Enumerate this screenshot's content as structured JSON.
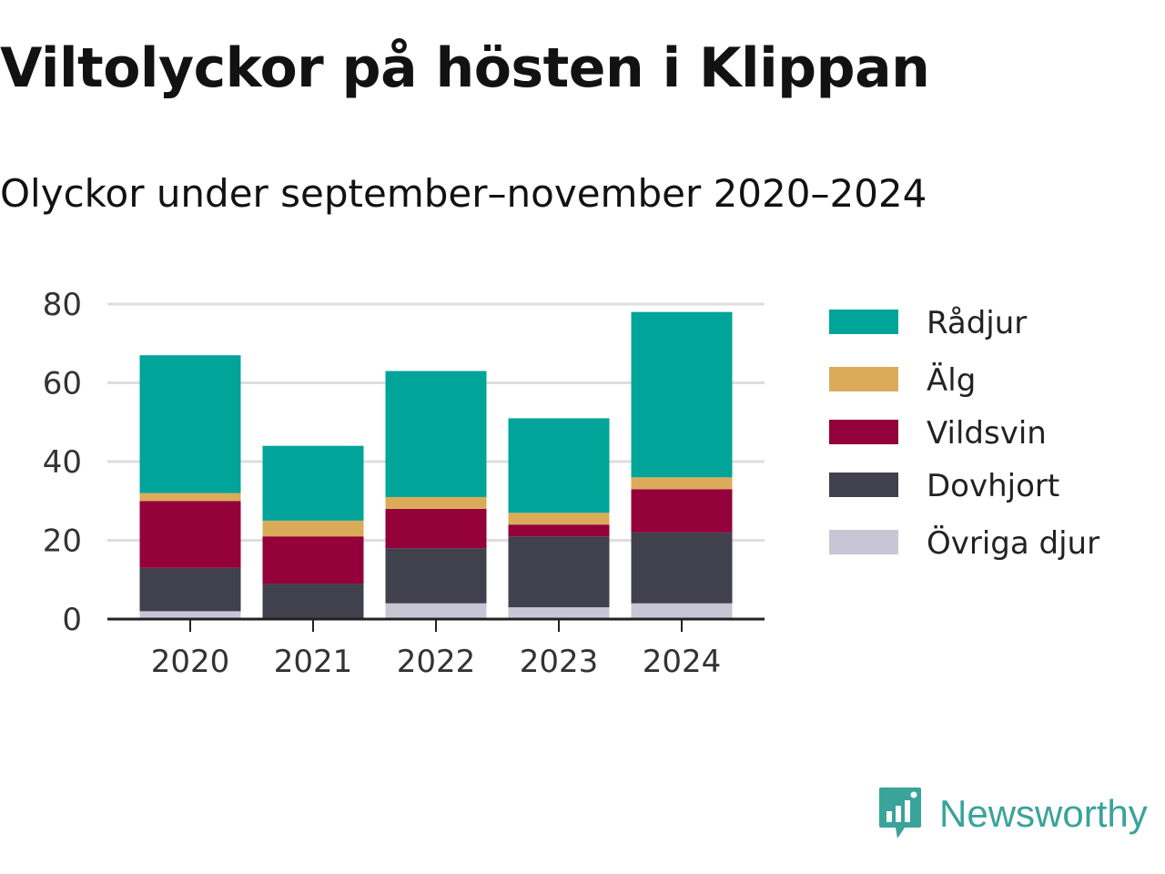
{
  "title": "Viltolyckor på hösten i Klippan",
  "subtitle": "Olyckor under september–november 2020–2024",
  "brand": {
    "name": "Newsworthy",
    "icon": "newsworthy-logo-icon",
    "color": "#3aa39a"
  },
  "chart_data": {
    "type": "bar",
    "stacked": true,
    "categories": [
      "2020",
      "2021",
      "2022",
      "2023",
      "2024"
    ],
    "series": [
      {
        "name": "Övriga djur",
        "color": "#c8c6d5",
        "values": [
          2,
          0,
          4,
          3,
          4
        ]
      },
      {
        "name": "Dovhjort",
        "color": "#41404d",
        "values": [
          11,
          9,
          14,
          18,
          18
        ]
      },
      {
        "name": "Vildsvin",
        "color": "#93003a",
        "values": [
          17,
          12,
          10,
          3,
          11
        ]
      },
      {
        "name": "Älg",
        "color": "#dcab5a",
        "values": [
          2,
          4,
          3,
          3,
          3
        ]
      },
      {
        "name": "Rådjur",
        "color": "#00a499",
        "values": [
          35,
          19,
          32,
          24,
          42
        ]
      }
    ],
    "ylim": [
      0,
      80
    ],
    "yticks": [
      0,
      20,
      40,
      60,
      80
    ],
    "grid": true,
    "legend": "right"
  }
}
